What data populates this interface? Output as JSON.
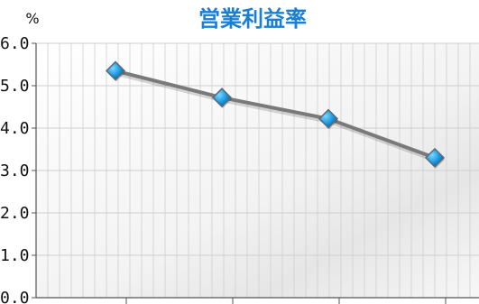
{
  "chart_data": {
    "type": "line",
    "title": "営業利益率",
    "unit_label": "%",
    "x": [
      1,
      2,
      3,
      4
    ],
    "categories": [
      "",
      "",
      "",
      ""
    ],
    "series": [
      {
        "values": [
          5.35,
          4.72,
          4.22,
          3.3
        ]
      }
    ],
    "ylim": [
      0,
      6
    ],
    "yticks": [
      "0.0",
      "1.0",
      "2.0",
      "3.0",
      "4.0",
      "5.0",
      "6.0"
    ],
    "grid": true,
    "legend": "none"
  },
  "colors": {
    "title": "#1a7fd4",
    "line": "#7a7a7a",
    "marker_fill": "#1e9be3",
    "marker_edge": "#5b6b78",
    "grid": "#cfcfcf",
    "axis": "#555555"
  }
}
